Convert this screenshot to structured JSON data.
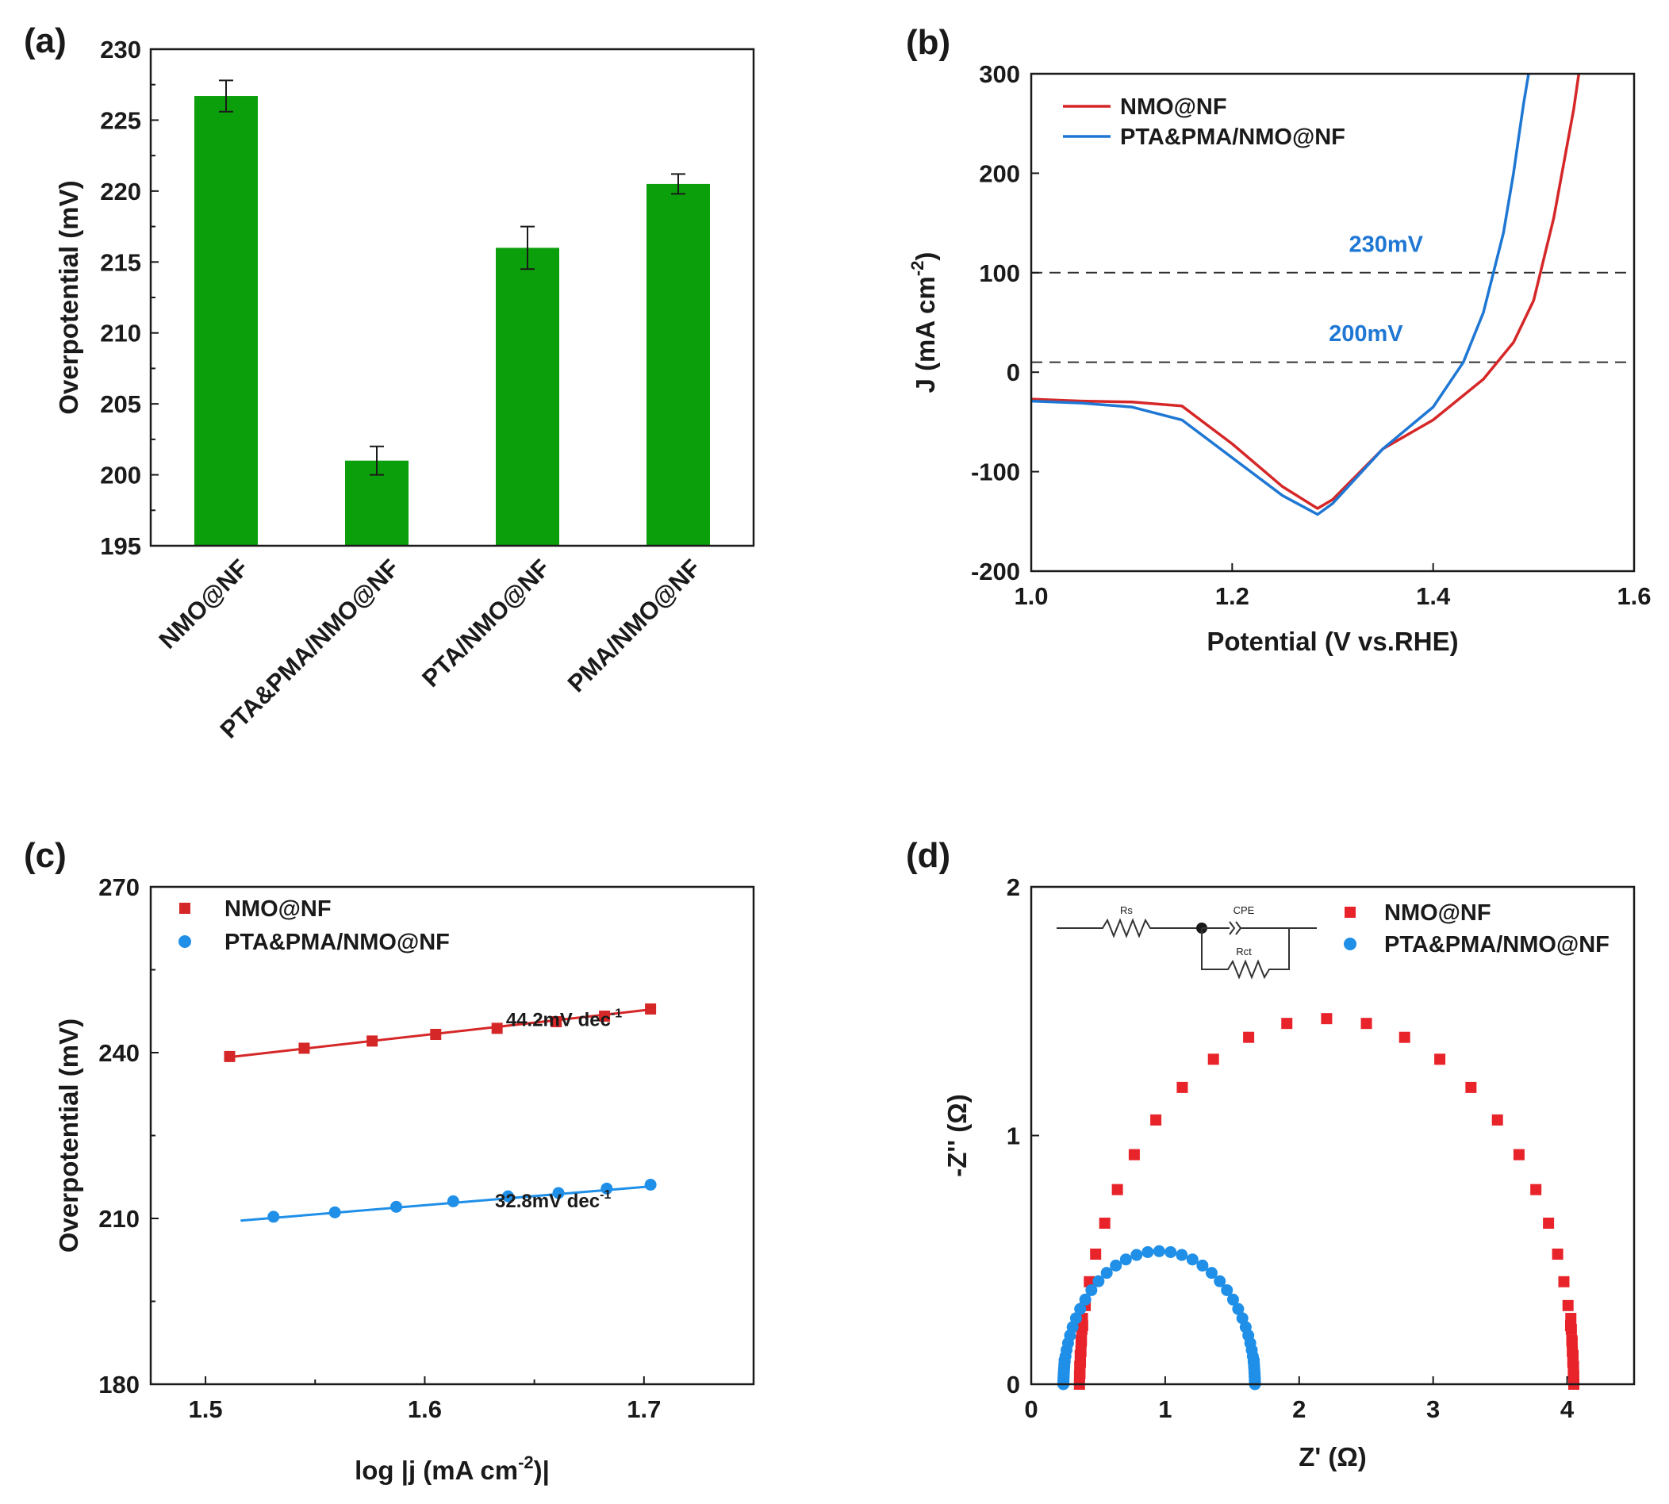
{
  "chart_data": [
    {
      "panel": "(a)",
      "type": "bar",
      "categories": [
        "NMO@NF",
        "PTA&PMA/NMO@NF",
        "PTA/NMO@NF",
        "PMA/NMO@NF"
      ],
      "values": [
        226.7,
        201.0,
        216.0,
        220.5
      ],
      "errors": [
        1.1,
        1.0,
        1.5,
        0.7
      ],
      "ylabel": "Overpotential (mV)",
      "ylim": [
        195,
        230
      ],
      "yticks": [
        "195",
        "200",
        "205",
        "210",
        "215",
        "220",
        "225",
        "230"
      ],
      "bar_color": "#0c9f0c"
    },
    {
      "panel": "(b)",
      "type": "line",
      "xlabel": "Potential (V vs.RHE)",
      "ylabel": "J (mA cm",
      "ylabel_sup": "-2",
      "ylabel_tail": ")",
      "xlim": [
        1.0,
        1.6
      ],
      "ylim": [
        -200,
        300
      ],
      "xticks": [
        "1.0",
        "1.2",
        "1.4",
        "1.6"
      ],
      "yticks": [
        "-200",
        "-100",
        "0",
        "100",
        "200",
        "300"
      ],
      "ytick_values": [
        -200,
        -100,
        0,
        100,
        200,
        300
      ],
      "hlines": [
        10,
        100
      ],
      "annotations": [
        {
          "text": "230mV",
          "x": 1.39,
          "y": 110
        },
        {
          "text": "200mV",
          "x": 1.37,
          "y": 20
        }
      ],
      "series": [
        {
          "name": "NMO@NF",
          "color": "#d62728",
          "x": [
            1.0,
            1.05,
            1.1,
            1.15,
            1.2,
            1.25,
            1.285,
            1.3,
            1.35,
            1.4,
            1.45,
            1.48,
            1.5,
            1.52,
            1.54,
            1.545
          ],
          "y": [
            -27,
            -29,
            -30,
            -34,
            -72,
            -115,
            -137,
            -128,
            -77,
            -48,
            -7,
            30,
            72,
            155,
            265,
            300
          ]
        },
        {
          "name": "PTA&PMA/NMO@NF",
          "color": "#1f77d4",
          "x": [
            1.0,
            1.05,
            1.1,
            1.15,
            1.2,
            1.25,
            1.285,
            1.3,
            1.35,
            1.4,
            1.43,
            1.45,
            1.47,
            1.48,
            1.485,
            1.49,
            1.495
          ],
          "y": [
            -29,
            -31,
            -35,
            -48,
            -86,
            -124,
            -143,
            -132,
            -77,
            -35,
            10,
            60,
            140,
            200,
            235,
            270,
            300
          ]
        }
      ]
    },
    {
      "panel": "(c)",
      "type": "scatter",
      "xlabel": "log |j (mA cm",
      "xlabel_sup": "-2",
      "xlabel_tail": ")|",
      "ylabel": "Overpotential (mV)",
      "xlim": [
        1.475,
        1.75
      ],
      "ylim": [
        180,
        270
      ],
      "xticks": [
        "1.5",
        "1.6",
        "1.7"
      ],
      "xtick_values": [
        1.5,
        1.6,
        1.7
      ],
      "yticks": [
        "180",
        "210",
        "240",
        "270"
      ],
      "ytick_values": [
        180,
        210,
        240,
        270
      ],
      "series": [
        {
          "name": "NMO@NF",
          "color": "#d62728",
          "marker": "square",
          "x": [
            1.511,
            1.545,
            1.576,
            1.605,
            1.633,
            1.66,
            1.682,
            1.703
          ],
          "y": [
            239.3,
            240.8,
            242.1,
            243.3,
            244.4,
            245.6,
            246.6,
            247.9
          ],
          "fit": {
            "x": [
              1.511,
              1.703
            ],
            "y": [
              239.2,
              247.8
            ]
          },
          "slope_label": "44.2mV dec",
          "slope_sup": "-1",
          "label_pos": {
            "x": 1.69,
            "y": 244.8
          }
        },
        {
          "name": "PTA&PMA/NMO@NF",
          "color": "#1f8fe8",
          "marker": "circle",
          "x": [
            1.531,
            1.559,
            1.587,
            1.613,
            1.638,
            1.661,
            1.683,
            1.703
          ],
          "y": [
            210.3,
            211.1,
            212.1,
            213.1,
            214.0,
            214.6,
            215.4,
            216.1
          ],
          "fit": {
            "x": [
              1.516,
              1.703
            ],
            "y": [
              209.6,
              215.8
            ]
          },
          "slope_label": "32.8mV dec",
          "slope_sup": "-1",
          "label_pos": {
            "x": 1.685,
            "y": 212.0
          }
        }
      ]
    },
    {
      "panel": "(d)",
      "type": "scatter",
      "xlabel": "Z' (Ω)",
      "ylabel": "-Z'' (Ω)",
      "xlim": [
        0,
        4.5
      ],
      "ylim": [
        0,
        2
      ],
      "xticks": [
        "0",
        "1",
        "2",
        "3",
        "4"
      ],
      "xtick_values": [
        0,
        1,
        2,
        3,
        4
      ],
      "yticks": [
        "0",
        "1",
        "2"
      ],
      "ytick_values": [
        0,
        1,
        2
      ],
      "circuit_labels": {
        "rs": "Rs",
        "cpe": "CPE",
        "rct": "Rct"
      },
      "series": [
        {
          "name": "NMO@NF",
          "color": "#e8232a",
          "marker": "square",
          "arc": {
            "x_start": 0.36,
            "x_end": 4.05,
            "peak": 1.47
          }
        },
        {
          "name": "PTA&PMA/NMO@NF",
          "color": "#1f8fe8",
          "marker": "circle",
          "arc": {
            "x_start": 0.24,
            "x_end": 1.67,
            "peak": 0.535
          }
        }
      ]
    }
  ]
}
